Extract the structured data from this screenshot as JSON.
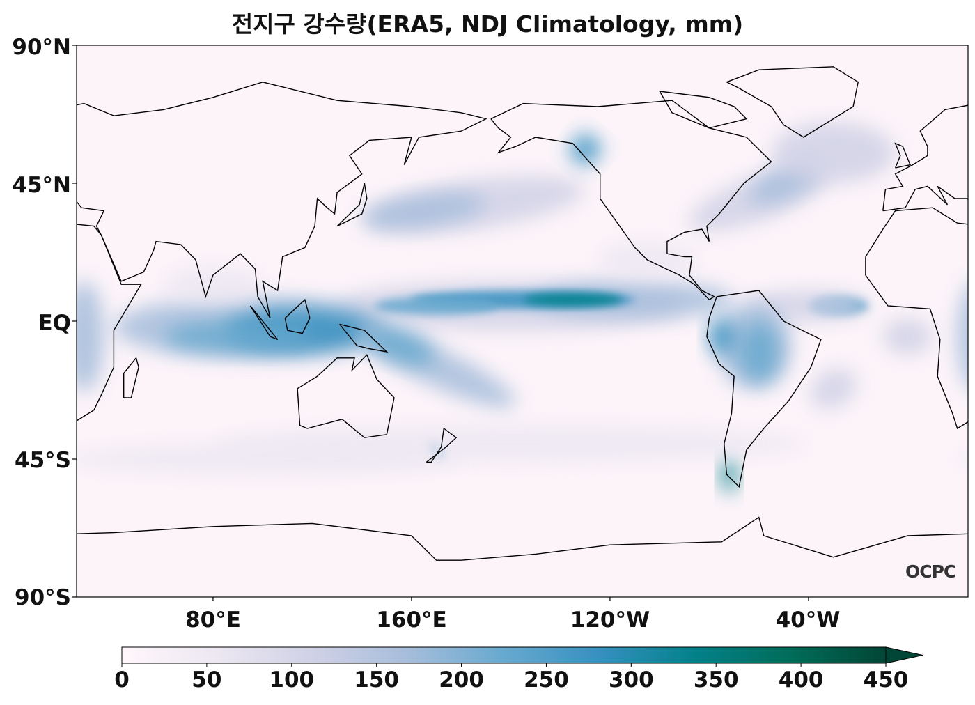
{
  "title": "전지구 강수량(ERA5, NDJ Climatology, mm)",
  "map": {
    "projection": "PlateCarree",
    "lat_ticks": [
      "90°N",
      "45°N",
      "EQ",
      "45°S",
      "90°S"
    ],
    "lon_ticks": [
      "80°E",
      "160°E",
      "120°W",
      "40°W"
    ],
    "logo": "OCPC"
  },
  "colorbar": {
    "ticks": [
      "0",
      "50",
      "100",
      "150",
      "200",
      "250",
      "300",
      "350",
      "400",
      "450"
    ],
    "range": [
      0,
      450
    ],
    "extend": "max",
    "colormap": [
      "#fff7fb",
      "#ece7f2",
      "#d0d1e6",
      "#a6bddb",
      "#67a9cf",
      "#3690c0",
      "#02818a",
      "#016c59",
      "#014636"
    ]
  }
}
